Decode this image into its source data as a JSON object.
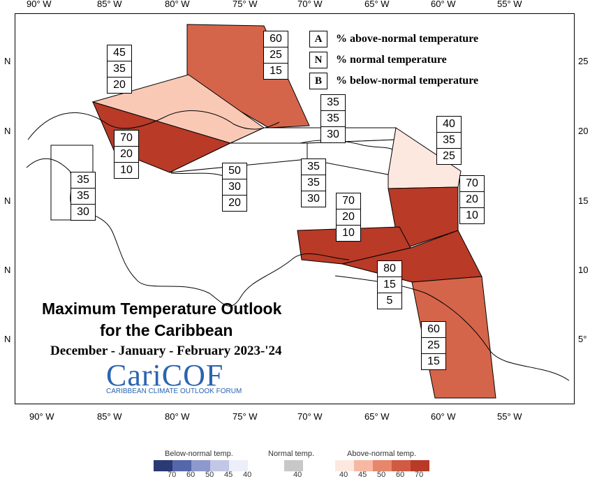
{
  "map": {
    "lon_ticks_top": [
      "90° W",
      "85° W",
      "80° W",
      "75° W",
      "70° W",
      "65° W",
      "60° W",
      "55° W"
    ],
    "lon_ticks_bottom": [
      "90° W",
      "85° W",
      "80° W",
      "75° W",
      "70° W",
      "65° W",
      "60° W",
      "55° W"
    ],
    "lat_ticks_left": [
      "N",
      "N",
      "N",
      "N",
      "N"
    ],
    "lat_ticks_right": [
      "25",
      "20",
      "15",
      "10",
      "5°"
    ],
    "region_fill_colors": {
      "40": "#fde8e0",
      "45": "#f9c9b6",
      "60": "#d5654a",
      "70": "#b83a27",
      "80": "#b83a27"
    }
  },
  "regions": [
    {
      "id": "bahamas",
      "probabilities": [
        "60",
        "25",
        "15"
      ],
      "above": 60
    },
    {
      "id": "cuba",
      "probabilities": [
        "45",
        "35",
        "20"
      ],
      "above": 45
    },
    {
      "id": "hispaniola-north",
      "probabilities": [
        "35",
        "35",
        "30"
      ],
      "above": 35
    },
    {
      "id": "cayman",
      "probabilities": [
        "70",
        "20",
        "10"
      ],
      "above": 70
    },
    {
      "id": "jamaica",
      "probabilities": [
        "50",
        "30",
        "20"
      ],
      "above": 50
    },
    {
      "id": "hispaniola-south",
      "probabilities": [
        "35",
        "35",
        "30"
      ],
      "above": 35
    },
    {
      "id": "belize",
      "probabilities": [
        "35",
        "35",
        "30"
      ],
      "above": 35
    },
    {
      "id": "leeward-islands",
      "probabilities": [
        "40",
        "35",
        "25"
      ],
      "above": 40
    },
    {
      "id": "windward-islands",
      "probabilities": [
        "70",
        "20",
        "10"
      ],
      "above": 70
    },
    {
      "id": "abc-islands",
      "probabilities": [
        "70",
        "20",
        "10"
      ],
      "above": 70
    },
    {
      "id": "trinidad",
      "probabilities": [
        "80",
        "15",
        "5"
      ],
      "above": 80
    },
    {
      "id": "guianas",
      "probabilities": [
        "60",
        "25",
        "15"
      ],
      "above": 60
    }
  ],
  "key": [
    {
      "letter": "A",
      "text": "% above-normal temperature"
    },
    {
      "letter": "N",
      "text": "% normal temperature"
    },
    {
      "letter": "B",
      "text": "% below-normal temperature"
    }
  ],
  "title": {
    "line1": "Maximum Temperature Outlook",
    "line2": "for the Caribbean",
    "line3": "December - January - February 2023-'24"
  },
  "logo": {
    "name": "CariCOF",
    "subtitle": "CARIBBEAN CLIMATE OUTLOOK FORUM",
    "color": "#2a64b0"
  },
  "scale": {
    "below": {
      "title": "Below-normal temp.",
      "colors": [
        "#2b3a73",
        "#5566aa",
        "#8d98cc",
        "#c2c7e6",
        "#eceef8"
      ],
      "labels": [
        "70",
        "60",
        "50",
        "45",
        "40"
      ]
    },
    "normal": {
      "title": "Normal temp.",
      "colors": [
        "#c8c8c8"
      ],
      "labels": [
        "40"
      ]
    },
    "above": {
      "title": "Above-normal temp.",
      "colors": [
        "#fde8e0",
        "#f7b8a3",
        "#e6866b",
        "#d05a42",
        "#b83a27"
      ],
      "labels": [
        "40",
        "45",
        "50",
        "60",
        "70"
      ]
    }
  }
}
